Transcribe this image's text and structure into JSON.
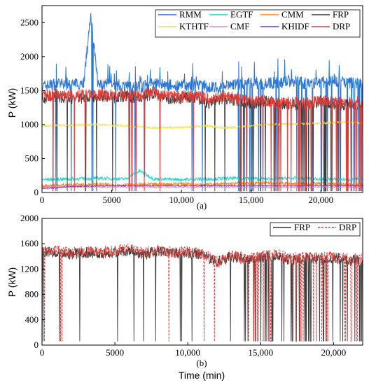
{
  "chart_data": [
    {
      "type": "line",
      "panel_label": "(a)",
      "ylabel": "P (kW)",
      "xlabel": "",
      "xlim": [
        0,
        23000
      ],
      "ylim": [
        0,
        2750
      ],
      "xticks": [
        0,
        5000,
        10000,
        15000,
        20000
      ],
      "xtick_labels": [
        "0",
        "5000",
        "10,000",
        "15,000",
        "20,000"
      ],
      "yticks": [
        0,
        500,
        1000,
        1500,
        2000,
        2500
      ],
      "ytick_labels": [
        "0",
        "500",
        "1000",
        "1500",
        "2000",
        "2500"
      ],
      "legend_position": "top-right",
      "series": [
        {
          "name": "RMM",
          "color": "#1f6fd6",
          "x": [
            0,
            1000,
            2000,
            3000,
            3500,
            4000,
            5000,
            6000,
            7000,
            8000,
            9000,
            10000,
            11000,
            12000,
            13000,
            14000,
            15000,
            16000,
            17000,
            18000,
            19000,
            20000,
            21000,
            22000,
            23000
          ],
          "y": [
            1560,
            1600,
            1580,
            1620,
            2640,
            1580,
            1590,
            1560,
            1550,
            1600,
            1580,
            1560,
            1580,
            1540,
            1560,
            1600,
            1620,
            1600,
            1620,
            1640,
            1600,
            1620,
            1640,
            1620,
            1600
          ]
        },
        {
          "name": "EGTF",
          "color": "#19d6c8",
          "x": [
            0,
            2000,
            4000,
            6000,
            7000,
            8000,
            10000,
            12000,
            14000,
            16000,
            18000,
            20000,
            22000,
            23000
          ],
          "y": [
            190,
            200,
            210,
            200,
            320,
            200,
            190,
            200,
            210,
            200,
            210,
            200,
            190,
            200
          ]
        },
        {
          "name": "CMM",
          "color": "#ff7f0e",
          "x": [
            0,
            2000,
            4000,
            6000,
            8000,
            10000,
            12000,
            14000,
            16000,
            18000,
            20000,
            22000,
            23000
          ],
          "y": [
            100,
            110,
            120,
            110,
            120,
            130,
            120,
            130,
            140,
            130,
            130,
            120,
            110
          ]
        },
        {
          "name": "FRP",
          "color": "#333333",
          "x": [
            0,
            1000,
            2000,
            3000,
            4000,
            5000,
            6000,
            7000,
            8000,
            9000,
            10000,
            11000,
            12000,
            13000,
            14000,
            15000,
            16000,
            17000,
            18000,
            19000,
            20000,
            21000,
            22000,
            23000
          ],
          "y": [
            1380,
            1420,
            1380,
            1400,
            1420,
            1400,
            1420,
            1380,
            1460,
            1360,
            1380,
            1400,
            1300,
            1400,
            1350,
            1300,
            1350,
            1300,
            1300,
            1300,
            1350,
            1300,
            1300,
            1300
          ]
        },
        {
          "name": "KTHTF",
          "color": "#f0e050",
          "x": [
            0,
            2000,
            4000,
            6000,
            7000,
            8000,
            10000,
            12000,
            13000,
            14000,
            16000,
            18000,
            20000,
            22000,
            23000
          ],
          "y": [
            980,
            990,
            1000,
            980,
            970,
            950,
            960,
            980,
            950,
            960,
            1000,
            1010,
            1020,
            1040,
            1020
          ]
        },
        {
          "name": "CMF",
          "color": "#e87ee8",
          "x": [
            0,
            5000,
            10000,
            15000,
            20000,
            23000
          ],
          "y": [
            80,
            80,
            80,
            80,
            80,
            80
          ]
        },
        {
          "name": "KHIDF",
          "color": "#7a2fd0",
          "x": [
            0,
            1000,
            2000,
            5000,
            10000,
            15000,
            20000,
            23000
          ],
          "y": [
            60,
            70,
            90,
            100,
            100,
            100,
            100,
            100
          ]
        },
        {
          "name": "DRP",
          "color": "#e53935",
          "x": [
            0,
            1000,
            2000,
            3000,
            4000,
            5000,
            6000,
            7000,
            8000,
            9000,
            10000,
            11000,
            12000,
            13000,
            14000,
            15000,
            16000,
            17000,
            18000,
            19000,
            20000,
            21000,
            22000,
            23000
          ],
          "y": [
            1420,
            1440,
            1420,
            1430,
            1440,
            1430,
            1440,
            1420,
            1480,
            1400,
            1420,
            1430,
            1380,
            1420,
            1380,
            1340,
            1360,
            1320,
            1320,
            1320,
            1360,
            1320,
            1320,
            1320
          ]
        }
      ]
    },
    {
      "type": "line",
      "panel_label": "(b)",
      "ylabel": "P (kW)",
      "xlabel": "Time (min)",
      "xlim": [
        0,
        22000
      ],
      "ylim": [
        0,
        2000
      ],
      "xticks": [
        0,
        5000,
        10000,
        15000,
        20000
      ],
      "xtick_labels": [
        "0",
        "5000",
        "10,000",
        "15,000",
        "20,000"
      ],
      "yticks": [
        0,
        400,
        800,
        1200,
        1600,
        2000
      ],
      "ytick_labels": [
        "0",
        "400",
        "800",
        "1200",
        "1600",
        "2000"
      ],
      "legend_position": "top-right",
      "series": [
        {
          "name": "FRP",
          "color": "#333333",
          "x": [
            0,
            1000,
            2000,
            3000,
            4000,
            5000,
            6000,
            7000,
            8000,
            9000,
            10000,
            11000,
            12000,
            13000,
            14000,
            15000,
            16000,
            17000,
            18000,
            19000,
            20000,
            21000
          ],
          "y": [
            1460,
            1480,
            1440,
            1460,
            1450,
            1470,
            1500,
            1440,
            1480,
            1440,
            1460,
            1420,
            1300,
            1400,
            1340,
            1380,
            1420,
            1340,
            1380,
            1360,
            1380,
            1340
          ]
        },
        {
          "name": "DRP",
          "color": "#e53935",
          "dashed": true,
          "x": [
            0,
            1000,
            2000,
            3000,
            4000,
            5000,
            6000,
            7000,
            8000,
            9000,
            10000,
            11000,
            12000,
            13000,
            14000,
            15000,
            16000,
            17000,
            18000,
            19000,
            20000,
            21000
          ],
          "y": [
            1480,
            1500,
            1460,
            1480,
            1470,
            1490,
            1520,
            1460,
            1500,
            1460,
            1480,
            1440,
            1320,
            1420,
            1360,
            1400,
            1440,
            1360,
            1400,
            1380,
            1400,
            1360
          ]
        }
      ]
    }
  ]
}
